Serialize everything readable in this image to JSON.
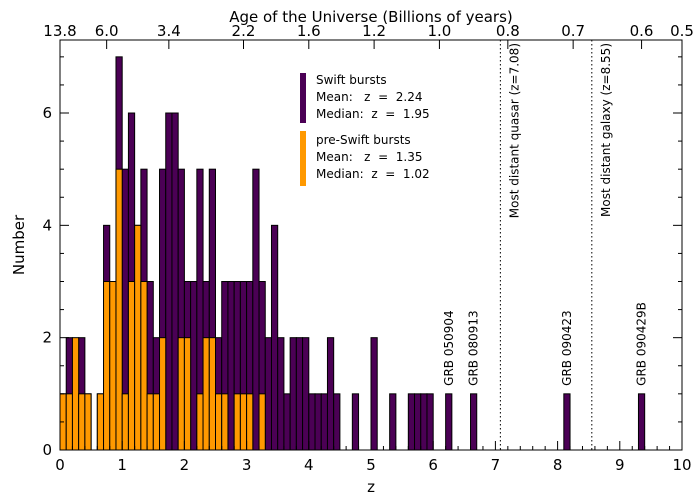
{
  "chart_data": {
    "type": "bar",
    "title": "",
    "xlabel": "z",
    "ylabel": "Number",
    "top_axis_label": "Age of the Universe (Billions of years)",
    "xlim": [
      0,
      10
    ],
    "ylim": [
      0,
      7.3
    ],
    "bin_width": 0.1,
    "x_ticks": [
      "0",
      "1",
      "2",
      "3",
      "4",
      "5",
      "6",
      "7",
      "8",
      "9",
      "10"
    ],
    "y_ticks": [
      "0",
      "2",
      "4",
      "6"
    ],
    "top_ticks": [
      {
        "z": 0.0,
        "label": "13.8"
      },
      {
        "z": 0.75,
        "label": "6.0"
      },
      {
        "z": 1.75,
        "label": "3.4"
      },
      {
        "z": 2.95,
        "label": "2.2"
      },
      {
        "z": 4.0,
        "label": "1.6"
      },
      {
        "z": 5.05,
        "label": "1.2"
      },
      {
        "z": 6.1,
        "label": "1.0"
      },
      {
        "z": 7.2,
        "label": "0.8"
      },
      {
        "z": 8.25,
        "label": "0.7"
      },
      {
        "z": 9.35,
        "label": "0.6"
      },
      {
        "z": 10.0,
        "label": "0.5"
      }
    ],
    "series": [
      {
        "name": "Swift bursts",
        "color": "#4b0055",
        "values": [
          1,
          2,
          1,
          2,
          1,
          0,
          1,
          4,
          3,
          7,
          5,
          6,
          4,
          5,
          3,
          2,
          5,
          6,
          6,
          5,
          3,
          3,
          5,
          3,
          5,
          2,
          3,
          3,
          3,
          3,
          3,
          5,
          3,
          2,
          4,
          2,
          1,
          2,
          2,
          2,
          1,
          1,
          1,
          2,
          1,
          0,
          0,
          1,
          0,
          0,
          2,
          0,
          0,
          1,
          0,
          0,
          1,
          1,
          1,
          1,
          0,
          0,
          0,
          0,
          0,
          0,
          0,
          0,
          0,
          0,
          0,
          0,
          0,
          0,
          0,
          0,
          0,
          0,
          0,
          0,
          0,
          0,
          0,
          0,
          0,
          0,
          0,
          0,
          0,
          0,
          0,
          0,
          0,
          0,
          0,
          0,
          0,
          0,
          0,
          0
        ]
      },
      {
        "name": "pre-Swift bursts",
        "color": "#ff9900",
        "values": [
          1,
          1,
          2,
          1,
          1,
          0,
          1,
          3,
          3,
          5,
          1,
          3,
          4,
          3,
          1,
          1,
          2,
          0,
          0,
          2,
          2,
          0,
          1,
          2,
          2,
          1,
          1,
          0,
          1,
          1,
          1,
          0,
          1,
          0,
          0,
          0,
          0,
          0,
          0,
          0,
          0,
          0,
          0,
          0,
          0,
          0,
          0,
          0,
          0,
          0,
          0,
          0,
          0,
          0,
          0,
          0,
          0,
          0,
          0,
          0,
          0,
          0,
          0,
          0,
          0,
          0,
          0,
          0,
          0,
          0,
          0,
          0,
          0,
          0,
          0,
          0,
          0,
          0,
          0,
          0,
          0,
          0,
          0,
          0,
          0,
          0,
          0,
          0,
          0,
          0,
          0,
          0,
          0,
          0,
          0,
          0,
          0,
          0,
          0,
          0
        ]
      }
    ],
    "grb_bars": [
      {
        "z": 6.25,
        "label": "GRB 050904"
      },
      {
        "z": 6.65,
        "label": "GRB 080913"
      },
      {
        "z": 8.15,
        "label": "GRB 090423"
      },
      {
        "z": 9.35,
        "label": "GRB 090429B"
      }
    ],
    "reference_lines": [
      {
        "z": 7.08,
        "label": "Most distant quasar (z=7.08)"
      },
      {
        "z": 8.55,
        "label": "Most distant galaxy (z=8.55)"
      }
    ],
    "legend": {
      "placement": "top-center",
      "entries": [
        {
          "series": "Swift bursts",
          "lines": [
            "Swift bursts",
            "Mean:   z  =  2.24",
            "Median:  z  =  1.95"
          ]
        },
        {
          "series": "pre-Swift bursts",
          "lines": [
            "pre-Swift bursts",
            "Mean:   z  =  1.35",
            "Median:  z  =  1.02"
          ]
        }
      ]
    },
    "grid": false
  }
}
